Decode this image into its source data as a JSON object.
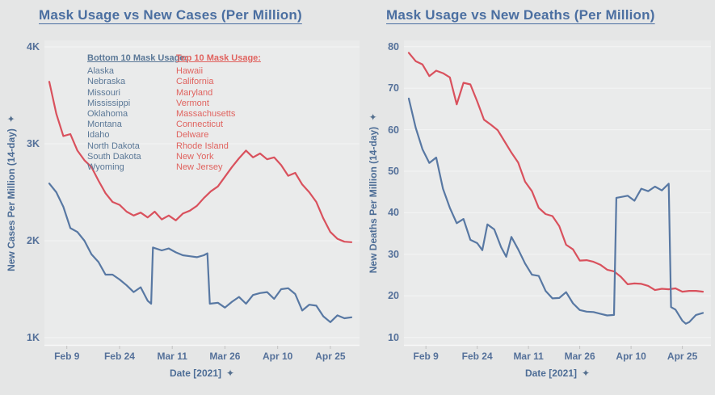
{
  "page": {
    "background": "#e5e6e6",
    "plot_background": "#eaebeb"
  },
  "icons": {
    "pin": "✦"
  },
  "colors": {
    "title_text": "#4b6fa1",
    "axis_text": "#4d6d96",
    "tick_text": "#55719a",
    "gridline": "#f4f5f5",
    "axis_line": "#f7f8f8",
    "tick_mark": "#c2c2c2",
    "bottom10_line": "#5878a3",
    "top10_line": "#d9515d",
    "legend_blue_text": "#5b7897",
    "legend_red_text": "#e0635f"
  },
  "chart_data": [
    {
      "type": "line",
      "title": "Mask Usage vs New Cases (Per Million)",
      "xlabel": "Date [2021]",
      "ylabel": "New Cases Per Million (14-day)",
      "x_tick_labels": [
        "Feb 9",
        "Feb 24",
        "Mar 11",
        "Mar 26",
        "Apr 10",
        "Apr 25"
      ],
      "x_tick_days": [
        5,
        20,
        35,
        50,
        65,
        80
      ],
      "x_domain_days": [
        0,
        86
      ],
      "x_unit": "days (day 0 ≈ Feb 4, 2021)",
      "y_tick_labels": [
        "1K",
        "2K",
        "3K",
        "4K"
      ],
      "y_tick_values": [
        1000,
        2000,
        3000,
        4000
      ],
      "ylim": [
        917,
        4067
      ],
      "grid": true,
      "legend": {
        "position": "top-left-inside",
        "columns": [
          {
            "header": "Bottom 10 Mask Usage:",
            "color": "#5b7897",
            "states": [
              "Alaska",
              "Nebraska",
              "Missouri",
              "Mississippi",
              "Oklahoma",
              "Montana",
              "Idaho",
              "North Dakota",
              "South Dakota",
              "Wyoming"
            ]
          },
          {
            "header": "Top 10 Mask Usage:",
            "color": "#e0635f",
            "states": [
              "Hawaii",
              "California",
              "Maryland",
              "Vermont",
              "Massachusetts",
              "Connecticut",
              "Delware",
              "Rhode Island",
              "New York",
              "New Jersey"
            ]
          }
        ]
      },
      "series": [
        {
          "name": "Top 10 Mask Usage",
          "color": "#d9515d",
          "days": [
            0,
            2,
            4,
            6,
            8,
            10,
            12,
            14,
            16,
            18,
            20,
            22,
            24,
            26,
            28,
            30,
            32,
            34,
            36,
            38,
            40,
            42,
            44,
            46,
            48,
            50,
            52,
            54,
            56,
            58,
            60,
            62,
            64,
            66,
            68,
            70,
            72,
            74,
            76,
            78,
            80,
            82,
            84,
            86
          ],
          "values": [
            3640,
            3310,
            3080,
            3100,
            2930,
            2830,
            2760,
            2620,
            2490,
            2400,
            2370,
            2300,
            2260,
            2290,
            2240,
            2300,
            2220,
            2260,
            2210,
            2280,
            2310,
            2360,
            2440,
            2510,
            2560,
            2660,
            2760,
            2850,
            2930,
            2860,
            2900,
            2840,
            2860,
            2780,
            2670,
            2700,
            2580,
            2500,
            2400,
            2230,
            2090,
            2020,
            1990,
            1985
          ]
        },
        {
          "name": "Bottom 10 Mask Usage",
          "color": "#5878a3",
          "days": [
            0,
            2,
            4,
            6,
            8,
            10,
            12,
            14,
            16,
            18,
            20,
            22,
            24,
            26,
            28,
            29,
            29.5,
            32,
            34,
            36,
            38,
            40,
            42,
            44,
            45,
            45.7,
            48,
            50,
            52,
            54,
            56,
            58,
            60,
            62,
            64,
            66,
            68,
            70,
            72,
            74,
            76,
            78,
            80,
            82,
            84,
            86
          ],
          "values": [
            2590,
            2500,
            2350,
            2130,
            2090,
            2000,
            1860,
            1780,
            1650,
            1650,
            1600,
            1540,
            1470,
            1520,
            1380,
            1350,
            1930,
            1900,
            1920,
            1880,
            1850,
            1840,
            1830,
            1850,
            1870,
            1350,
            1360,
            1310,
            1370,
            1420,
            1350,
            1440,
            1460,
            1470,
            1400,
            1500,
            1510,
            1450,
            1280,
            1340,
            1330,
            1220,
            1160,
            1230,
            1200,
            1210
          ]
        }
      ]
    },
    {
      "type": "line",
      "title": "Mask Usage vs New Deaths (Per Million)",
      "xlabel": "Date [2021]",
      "ylabel": "New Deaths Per Million (14-day)",
      "x_tick_labels": [
        "Feb 9",
        "Feb 24",
        "Mar 11",
        "Mar 26",
        "Apr 10",
        "Apr 25"
      ],
      "x_tick_days": [
        5,
        20,
        35,
        50,
        65,
        80
      ],
      "x_domain_days": [
        0,
        86
      ],
      "x_unit": "days (day 0 ≈ Feb 4, 2021)",
      "y_tick_labels": [
        "10",
        "20",
        "30",
        "40",
        "50",
        "60",
        "70",
        "80"
      ],
      "y_tick_values": [
        10,
        20,
        30,
        40,
        50,
        60,
        70,
        80
      ],
      "ylim": [
        8,
        81.5
      ],
      "grid": true,
      "legend": null,
      "series": [
        {
          "name": "Top 10 Mask Usage",
          "color": "#d9515d",
          "days": [
            0,
            2,
            4,
            6,
            8,
            10,
            12,
            14,
            16,
            18,
            20,
            22,
            24,
            26,
            28,
            30,
            32,
            34,
            36,
            38,
            40,
            42,
            44,
            46,
            48,
            50,
            52,
            54,
            56,
            58,
            60,
            62,
            64,
            66,
            68,
            70,
            72,
            74,
            76,
            78,
            80,
            82,
            84,
            86
          ],
          "values": [
            78.5,
            76.5,
            75.7,
            72.9,
            74.2,
            73.6,
            72.6,
            66.1,
            71.3,
            70.9,
            66.8,
            62.4,
            61.2,
            59.9,
            57.2,
            54.5,
            52.1,
            47.5,
            45.2,
            41.2,
            39.7,
            39.2,
            36.8,
            32.3,
            31.2,
            28.5,
            28.6,
            28.2,
            27.5,
            26.3,
            25.9,
            24.6,
            22.8,
            23.0,
            22.9,
            22.4,
            21.4,
            21.7,
            21.6,
            21.8,
            21.0,
            21.2,
            21.2,
            21.0
          ]
        },
        {
          "name": "Bottom 10 Mask Usage",
          "color": "#5878a3",
          "days": [
            0,
            2,
            4,
            6,
            8,
            10,
            12,
            14,
            16,
            18,
            20,
            21.5,
            23,
            25,
            27,
            28.5,
            30,
            32,
            34,
            36,
            38,
            40,
            42,
            44,
            46,
            48,
            50,
            52,
            54,
            56,
            58,
            60,
            60.7,
            62,
            64,
            66,
            68,
            70,
            72,
            74,
            76,
            76.7,
            78,
            80,
            81,
            82,
            84,
            86
          ],
          "values": [
            67.5,
            60.5,
            55.3,
            52.0,
            53.3,
            45.8,
            41.2,
            37.5,
            38.5,
            33.5,
            32.7,
            31.0,
            37.2,
            36.0,
            31.7,
            29.4,
            34.2,
            31.2,
            27.8,
            25.1,
            24.8,
            21.2,
            19.4,
            19.5,
            20.9,
            18.2,
            16.6,
            16.2,
            16.1,
            15.7,
            15.3,
            15.4,
            43.6,
            43.8,
            44.1,
            42.9,
            45.8,
            45.2,
            46.3,
            45.4,
            47.0,
            17.3,
            16.7,
            14.0,
            13.3,
            13.7,
            15.4,
            15.9
          ]
        }
      ]
    }
  ]
}
